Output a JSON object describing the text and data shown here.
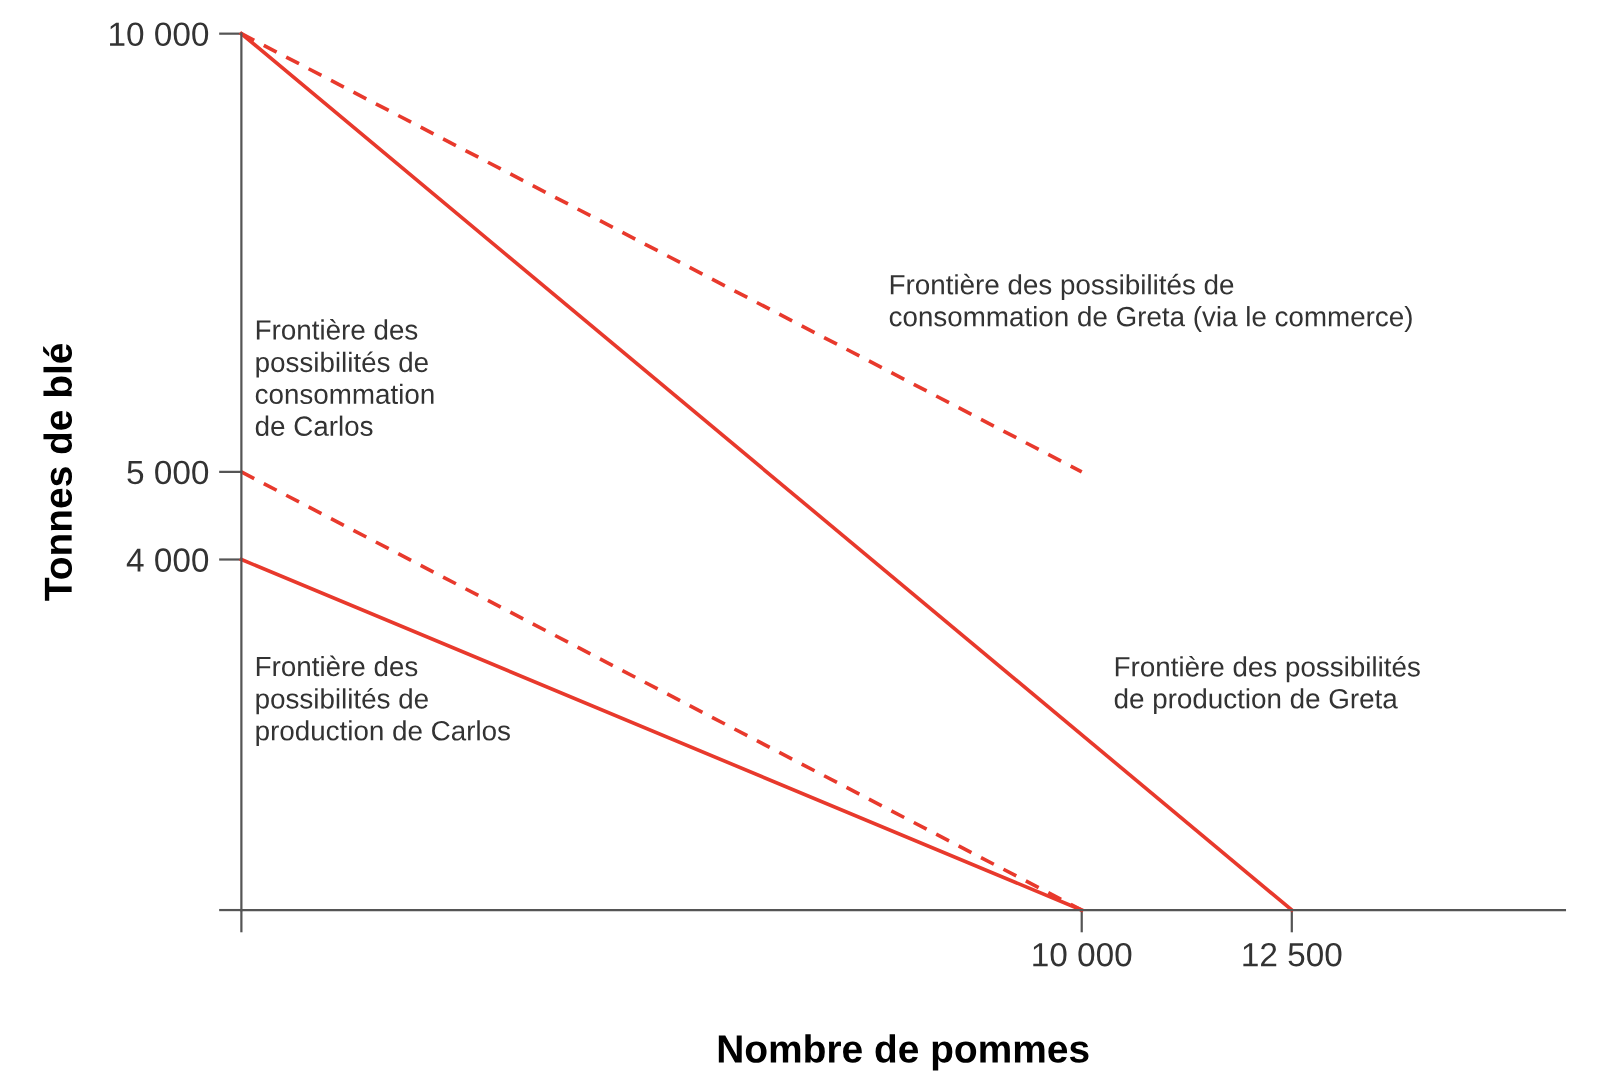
{
  "chart_data": {
    "type": "line",
    "xlabel": "Nombre de pommes",
    "ylabel": "Tonnes de blé",
    "xlim": [
      0,
      15750
    ],
    "ylim": [
      0,
      10000
    ],
    "xticks": [
      {
        "value": 0,
        "label": null
      },
      {
        "value": 10000,
        "label": "10 000"
      },
      {
        "value": 12500,
        "label": "12 500"
      }
    ],
    "yticks": [
      {
        "value": 0,
        "label": null
      },
      {
        "value": 4000,
        "label": "4 000"
      },
      {
        "value": 5000,
        "label": "5 000"
      },
      {
        "value": 10000,
        "label": "10 000"
      }
    ],
    "grid": false,
    "legend": false,
    "series": [
      {
        "x": [
          0,
          12500
        ],
        "values": [
          10000,
          0
        ],
        "color": "#e8392c",
        "line_style": "solid"
      },
      {
        "x": [
          0,
          10000
        ],
        "values": [
          4000,
          0
        ],
        "color": "#e8392c",
        "line_style": "solid"
      },
      {
        "x": [
          0,
          10000
        ],
        "values": [
          5000,
          0
        ],
        "color": "#e8392c",
        "line_style": "dashed"
      },
      {
        "x": [
          0,
          10000
        ],
        "values": [
          10000,
          5000
        ],
        "color": "#e8392c",
        "line_style": "dashed"
      }
    ],
    "annotations": [
      "Frontière des possibilités de\nconsommation de Greta (via le commerce)",
      "Frontière des\npossibilités de\nconsommation\nde Carlos",
      "Frontière des\npossibilités de\nproduction de Carlos",
      "Frontière des possibilités\nde production de Greta"
    ]
  }
}
